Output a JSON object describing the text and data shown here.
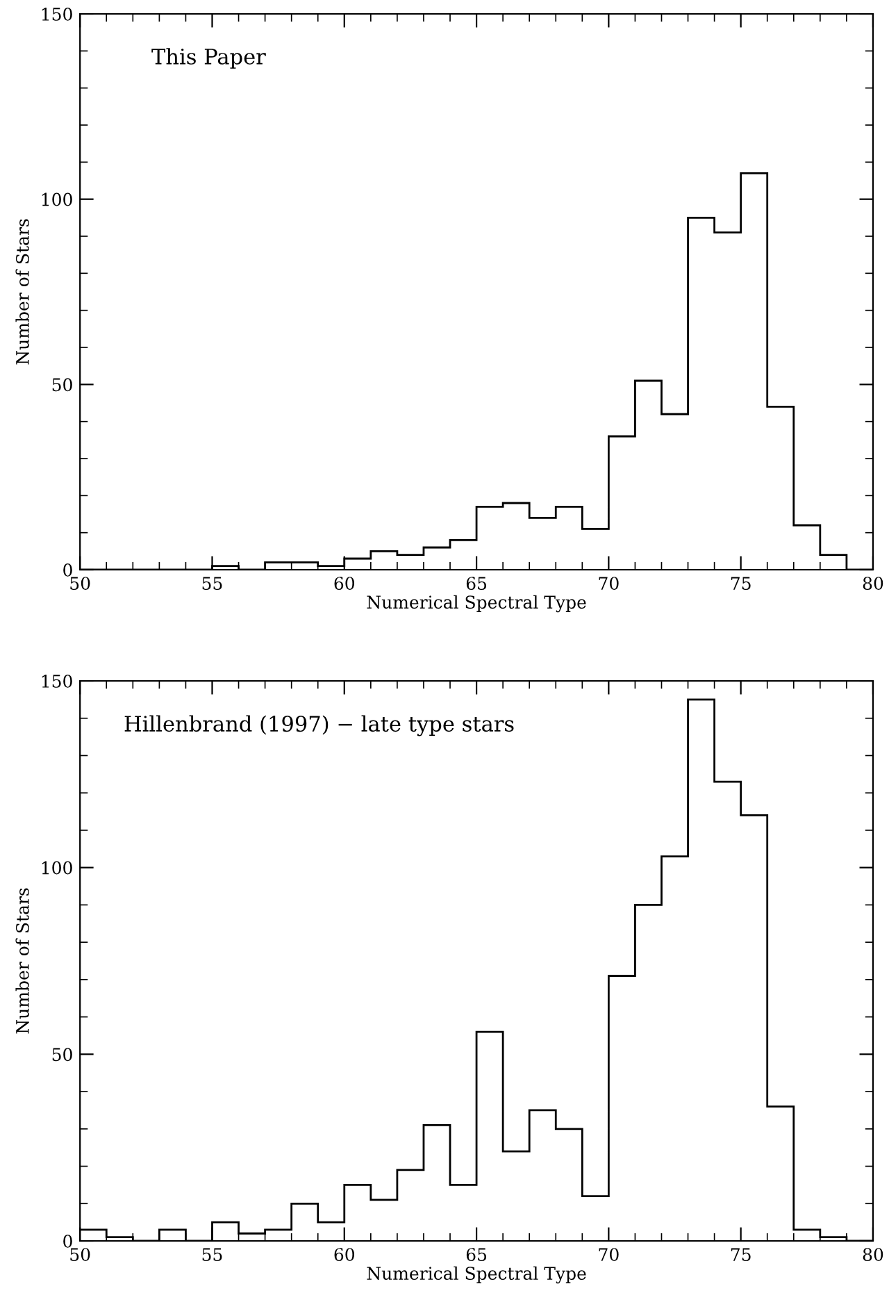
{
  "chart_data": [
    {
      "type": "histogram",
      "annotations": [
        "This Paper"
      ],
      "xlabel": "Numerical Spectral Type",
      "ylabel": "Number of Stars",
      "bins": [
        50,
        51,
        52,
        53,
        54,
        55,
        56,
        57,
        58,
        59,
        60,
        61,
        62,
        63,
        64,
        65,
        66,
        67,
        68,
        69,
        70,
        71,
        72,
        73,
        74,
        75,
        76,
        77,
        78,
        79,
        80
      ],
      "values": [
        0,
        0,
        0,
        0,
        0,
        1,
        0,
        2,
        2,
        1,
        3,
        5,
        4,
        6,
        8,
        17,
        18,
        14,
        17,
        11,
        36,
        51,
        42,
        95,
        91,
        107,
        44,
        12,
        4,
        0
      ],
      "color": "#000000",
      "xlim": [
        50,
        80
      ],
      "ylim": [
        0,
        150
      ],
      "xticks": [
        50,
        55,
        60,
        65,
        70,
        75,
        80
      ],
      "yticks": [
        0,
        50,
        100,
        150
      ],
      "grid": false
    },
    {
      "type": "histogram",
      "annotations": [
        "Hillenbrand (1997) − late type stars"
      ],
      "xlabel": "Numerical Spectral Type",
      "ylabel": "Number of Stars",
      "bins": [
        50,
        51,
        52,
        53,
        54,
        55,
        56,
        57,
        58,
        59,
        60,
        61,
        62,
        63,
        64,
        65,
        66,
        67,
        68,
        69,
        70,
        71,
        72,
        73,
        74,
        75,
        76,
        77,
        78,
        79,
        80
      ],
      "values": [
        3,
        1,
        0,
        3,
        0,
        5,
        2,
        3,
        10,
        5,
        15,
        11,
        19,
        31,
        15,
        56,
        24,
        35,
        30,
        12,
        71,
        90,
        103,
        145,
        123,
        114,
        36,
        3,
        1,
        0
      ],
      "color": "#000000",
      "xlim": [
        50,
        80
      ],
      "ylim": [
        0,
        150
      ],
      "xticks": [
        50,
        55,
        60,
        65,
        70,
        75,
        80
      ],
      "yticks": [
        0,
        50,
        100,
        150
      ],
      "grid": false
    }
  ]
}
